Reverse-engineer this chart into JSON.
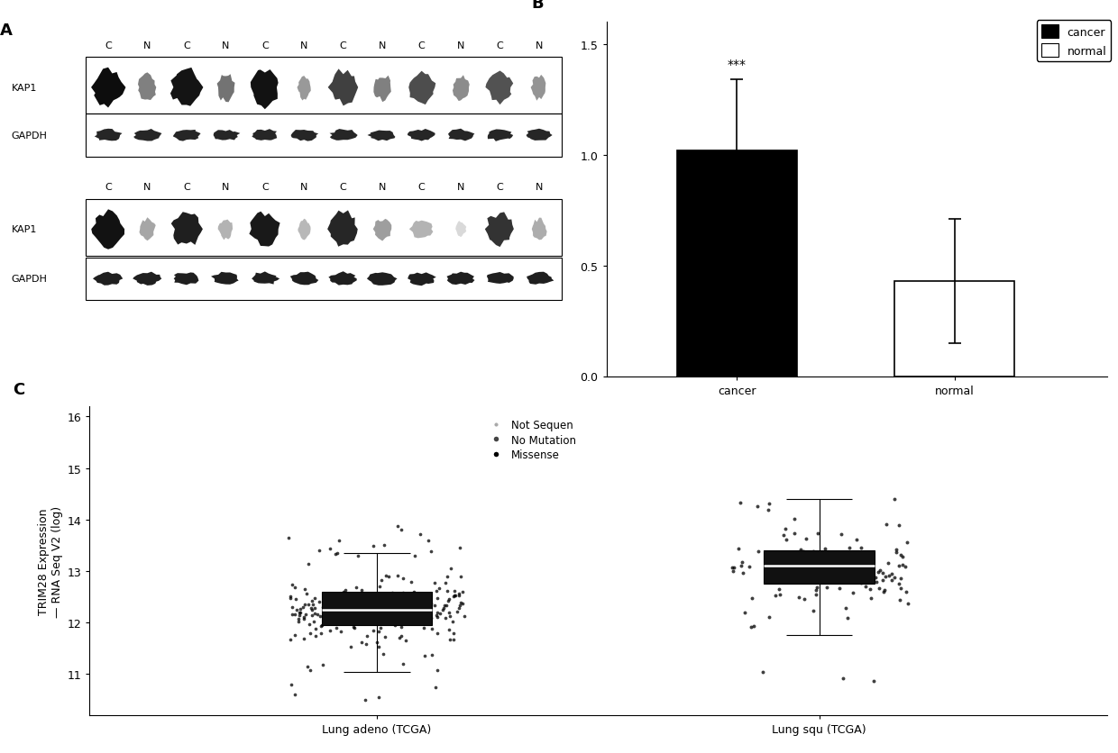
{
  "panel_A_label": "A",
  "panel_B_label": "B",
  "panel_C_label": "C",
  "western_blot_1": {
    "col_labels": [
      "C",
      "N",
      "C",
      "N",
      "C",
      "N",
      "C",
      "N",
      "C",
      "N",
      "C",
      "N"
    ]
  },
  "western_blot_2": {
    "col_labels": [
      "C",
      "N",
      "C",
      "N",
      "C",
      "N",
      "C",
      "N",
      "C",
      "N",
      "C",
      "N"
    ]
  },
  "bar_chart": {
    "categories": [
      "cancer",
      "normal"
    ],
    "values": [
      1.02,
      0.43
    ],
    "errors": [
      0.32,
      0.28
    ],
    "colors": [
      "#000000",
      "#ffffff"
    ],
    "edge_colors": [
      "#000000",
      "#000000"
    ],
    "ylim": [
      0.0,
      1.6
    ],
    "yticks": [
      0.0,
      0.5,
      1.0,
      1.5
    ],
    "yticklabels": [
      "0.0",
      "0.5",
      "1.0",
      "1.5"
    ],
    "significance": "***",
    "legend": [
      {
        "label": "cancer",
        "color": "#000000"
      },
      {
        "label": "normal",
        "color": "#ffffff"
      }
    ]
  },
  "scatter_plot": {
    "groups": [
      "Lung adeno (TCGA)",
      "Lung squ (TCGA)"
    ],
    "group1_box": {
      "q1": 11.95,
      "median": 12.25,
      "q3": 12.6,
      "whisker_low": 11.05,
      "whisker_high": 13.35
    },
    "group2_box": {
      "q1": 12.75,
      "median": 13.1,
      "q3": 13.4,
      "whisker_low": 11.75,
      "whisker_high": 14.4
    },
    "ylim": [
      10.2,
      16.2
    ],
    "yticks": [
      11,
      12,
      13,
      14,
      15,
      16
    ],
    "ylabel": "TRIM28 Expression\n— RNA Seq V2 (log)",
    "legend_labels": [
      "Not Sequen",
      "No Mutation",
      "Missense"
    ]
  }
}
